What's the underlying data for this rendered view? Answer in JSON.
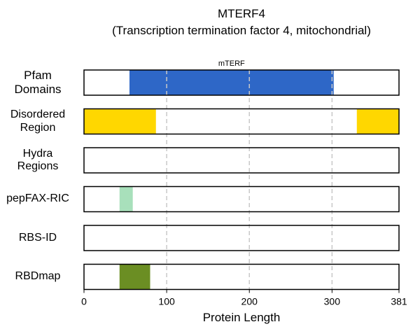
{
  "chart_data": {
    "type": "domain-track",
    "title": "MTERF4",
    "subtitle": "(Transcription termination factor 4, mitochondrial)",
    "xlabel": "Protein Length",
    "xlim": [
      0,
      381
    ],
    "xticks": [
      0,
      100,
      200,
      300,
      381
    ],
    "gridlines": [
      100,
      200,
      300
    ],
    "tracks": [
      {
        "label": "Pfam\nDomains",
        "segments": [
          {
            "start": 55,
            "end": 302,
            "color": "#2e67c7",
            "label": "mTERF"
          }
        ]
      },
      {
        "label": "Disordered\nRegion",
        "segments": [
          {
            "start": 0,
            "end": 87,
            "color": "#ffd700"
          },
          {
            "start": 330,
            "end": 381,
            "color": "#ffd700"
          }
        ]
      },
      {
        "label": "Hydra\nRegions",
        "segments": []
      },
      {
        "label": "pepFAX-RIC",
        "segments": [
          {
            "start": 43,
            "end": 59,
            "color": "#a8e0bb"
          }
        ]
      },
      {
        "label": "RBS-ID",
        "segments": []
      },
      {
        "label": "RBDmap",
        "segments": [
          {
            "start": 43,
            "end": 80,
            "color": "#6b8e23"
          }
        ]
      }
    ]
  }
}
